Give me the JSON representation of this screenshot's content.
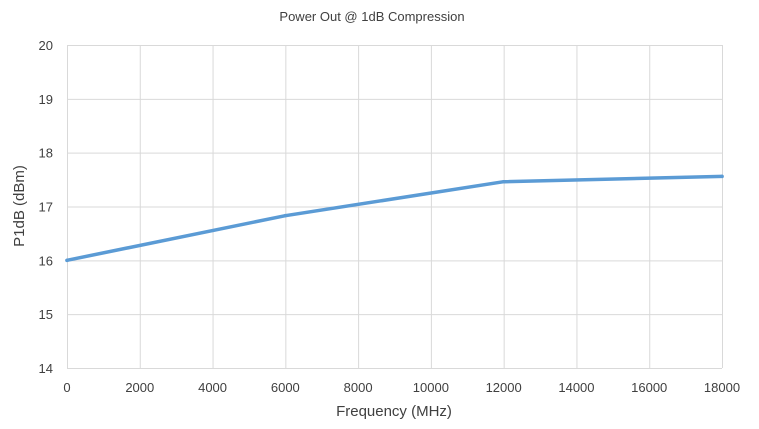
{
  "chart_data": {
    "type": "line",
    "title": "Power Out @ 1dB Compression",
    "xlabel": "Frequency (MHz)",
    "ylabel": "P1dB (dBm)",
    "xlim": [
      0,
      18000
    ],
    "ylim": [
      14,
      20
    ],
    "xticks": [
      0,
      2000,
      4000,
      6000,
      8000,
      10000,
      12000,
      14000,
      16000,
      18000
    ],
    "yticks": [
      14,
      15,
      16,
      17,
      18,
      19,
      20
    ],
    "grid": true,
    "legend": "none",
    "series": [
      {
        "color": "#5b9bd5",
        "x": [
          0,
          6000,
          12000,
          18000
        ],
        "y": [
          16.0,
          16.83,
          17.46,
          17.56
        ]
      }
    ]
  }
}
